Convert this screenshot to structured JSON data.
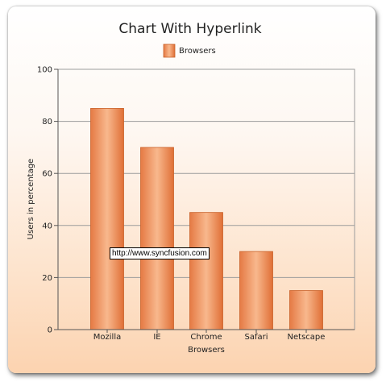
{
  "chart_data": {
    "type": "bar",
    "title": "Chart With Hyperlink",
    "categories": [
      "Mozilla",
      "IE",
      "Chrome",
      "Safari",
      "Netscape"
    ],
    "series": [
      {
        "name": "Browsers",
        "values": [
          85,
          70,
          45,
          30,
          15
        ]
      }
    ],
    "xlabel": "Browsers",
    "ylabel": "Users in percentage",
    "ylim": [
      0,
      100
    ],
    "yticks": [
      0,
      20,
      40,
      60,
      80,
      100
    ],
    "grid": true,
    "legend": "top-center"
  },
  "tooltip": {
    "text": "http://www.syncfusion.com"
  },
  "colors": {
    "bar_light": "#f7b487",
    "bar_dark": "#e3733a",
    "bar_edge": "#c9622a",
    "grid": "#9c9c9c"
  }
}
